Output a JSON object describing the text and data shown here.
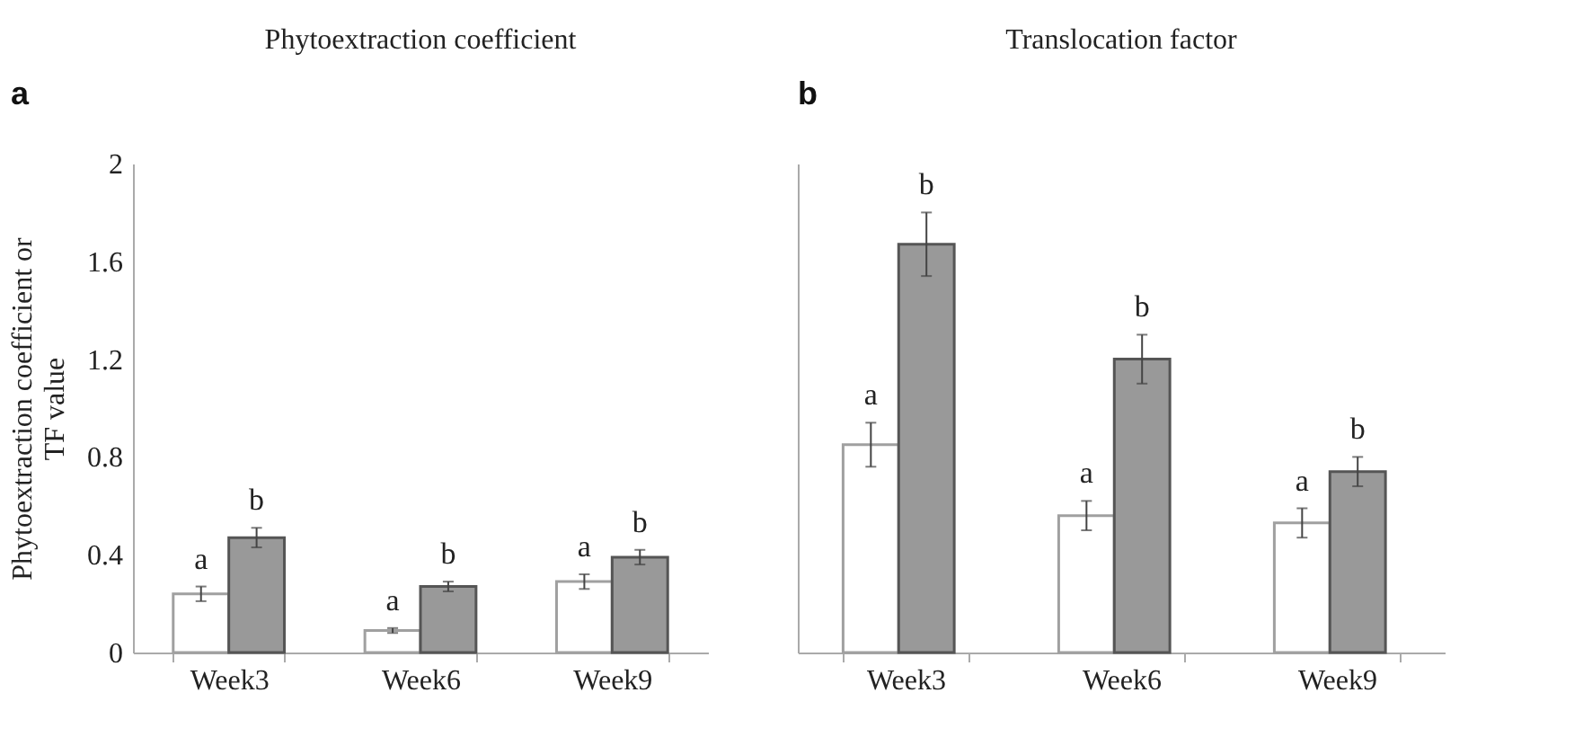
{
  "chart_data": [
    {
      "type": "bar",
      "title": "Phytoextraction coefficient",
      "ylabel": "Phytoextraction coefficient or\nTF value",
      "annotations": [
        "a"
      ],
      "categories": [
        "Week3",
        "Week6",
        "Week9"
      ],
      "ylim": [
        0,
        2
      ],
      "yticks": [
        0,
        0.4,
        0.8,
        1.2,
        1.6,
        2
      ],
      "series": [
        {
          "color": "#ffffff",
          "values": [
            0.24,
            0.09,
            0.29
          ],
          "errors": [
            0.03,
            0.01,
            0.03
          ],
          "value_labels": [
            "a",
            "a",
            "a"
          ]
        },
        {
          "color": "#999999",
          "values": [
            0.47,
            0.27,
            0.39
          ],
          "errors": [
            0.04,
            0.02,
            0.03
          ],
          "value_labels": [
            "b",
            "b",
            "b"
          ]
        }
      ]
    },
    {
      "type": "bar",
      "title": "Translocation factor",
      "annotations": [
        "b"
      ],
      "categories": [
        "Week3",
        "Week6",
        "Week9"
      ],
      "ylim": [
        0,
        2
      ],
      "yticks": [
        0,
        0.4,
        0.8,
        1.2,
        1.6,
        2
      ],
      "tick_labels": "x",
      "series": [
        {
          "color": "#ffffff",
          "values": [
            0.85,
            0.56,
            0.53
          ],
          "errors": [
            0.09,
            0.06,
            0.06
          ],
          "value_labels": [
            "a",
            "a",
            "a"
          ]
        },
        {
          "color": "#999999",
          "values": [
            1.67,
            1.2,
            0.74
          ],
          "errors": [
            0.13,
            0.1,
            0.06
          ],
          "value_labels": [
            "b",
            "b",
            "b"
          ]
        }
      ]
    }
  ]
}
